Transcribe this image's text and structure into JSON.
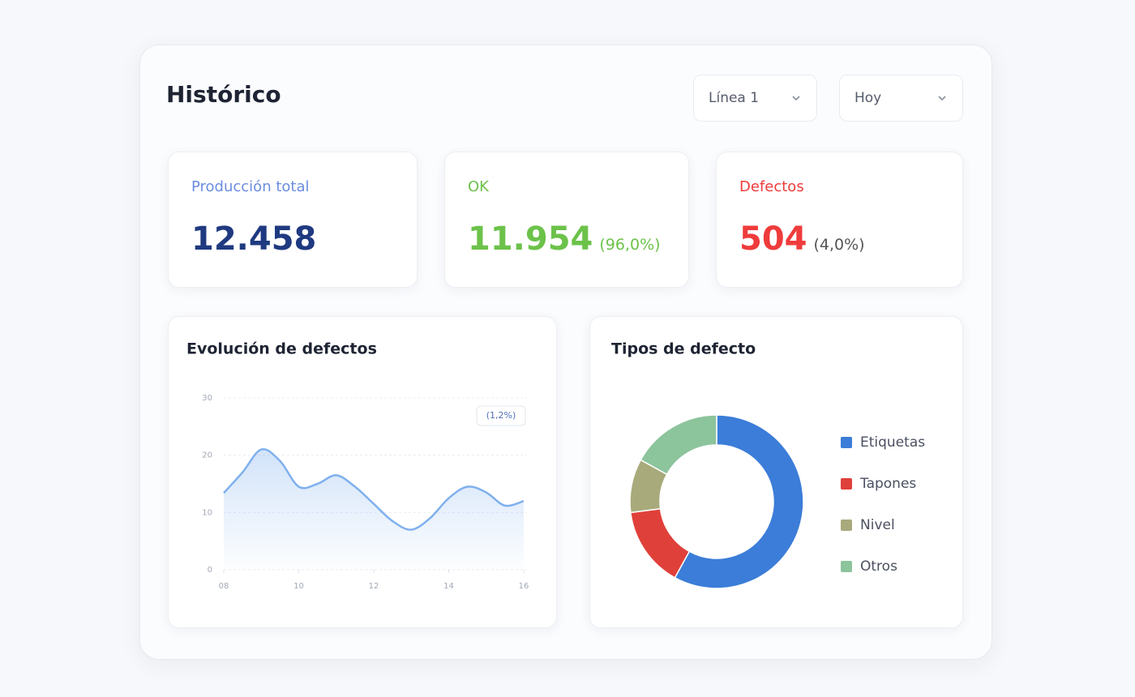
{
  "header": {
    "title": "Histórico",
    "filters": [
      {
        "label": "Línea 1"
      },
      {
        "label": "Hoy"
      }
    ]
  },
  "kpis": [
    {
      "label": "Producción total",
      "value": "12.458",
      "color": "#1f3a80",
      "label_color": "#6b8de0"
    },
    {
      "label": "OK",
      "value": "11.954",
      "note": "(96,0%)",
      "color": "#6cc24a",
      "label_color": "#6cc24a"
    },
    {
      "label": "Defectos",
      "value": "504",
      "note": "(4,0%)",
      "color": "#ef3b3b",
      "label_color": "#ef3b3b"
    }
  ],
  "chart_data": [
    {
      "type": "line",
      "title": "Evolución de defectos",
      "annotation": "(1,2%)",
      "color": "#7fb0ee",
      "x": [
        8,
        8.5,
        9,
        9.5,
        10,
        10.5,
        11,
        11.5,
        12,
        12.5,
        13,
        13.5,
        14,
        14.5,
        15,
        15.5,
        16
      ],
      "values": [
        13.4,
        17,
        21,
        19,
        14.5,
        15,
        16.5,
        14.5,
        11.5,
        8.5,
        7,
        9,
        12.5,
        14.5,
        13.5,
        11.2,
        12
      ],
      "xlim": [
        8,
        16
      ],
      "xticks": [
        {
          "value": 8,
          "label": "08"
        },
        10,
        12,
        14,
        16
      ],
      "ylim": [
        0,
        30
      ],
      "yticks": [
        0,
        10,
        20,
        30
      ],
      "grid": true
    },
    {
      "type": "pie",
      "title": "Tipos de defecto",
      "categories": [
        "Etiquetas",
        "Tapones",
        "Nivel",
        "Otros"
      ],
      "values": [
        58,
        15,
        10,
        17
      ],
      "colors": [
        "#3b7dd8",
        "#e0403a",
        "#a9aa7c",
        "#8cc49c"
      ]
    }
  ]
}
